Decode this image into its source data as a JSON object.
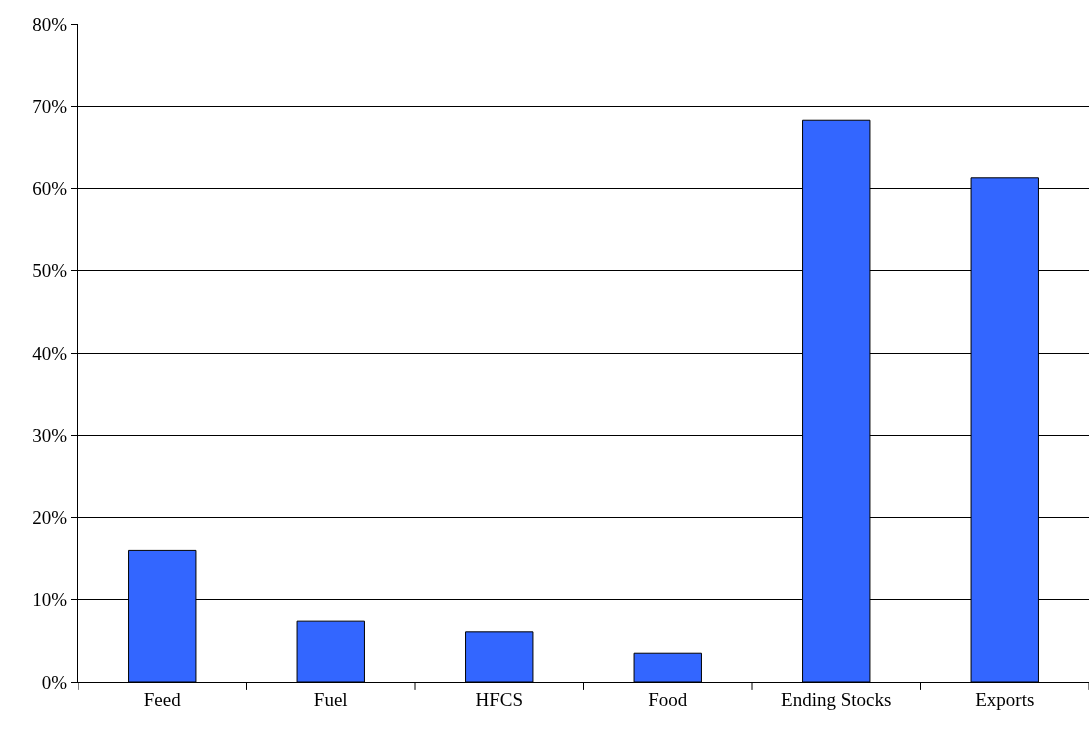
{
  "chart_data": {
    "type": "bar",
    "categories": [
      "Feed",
      "Fuel",
      "HFCS",
      "Food",
      "Ending Stocks",
      "Exports"
    ],
    "values": [
      16,
      7.4,
      6.1,
      3.5,
      68.3,
      61.3
    ],
    "color": "#3366ff",
    "ylim": [
      0,
      80
    ],
    "yticks": [
      {
        "value": 0,
        "label": "0%"
      },
      {
        "value": 10,
        "label": "10%"
      },
      {
        "value": 20,
        "label": "20%"
      },
      {
        "value": 30,
        "label": "30%"
      },
      {
        "value": 40,
        "label": "40%"
      },
      {
        "value": 50,
        "label": "50%"
      },
      {
        "value": 60,
        "label": "60%"
      },
      {
        "value": 70,
        "label": "70%"
      },
      {
        "value": 80,
        "label": "80%"
      }
    ],
    "grid": "y"
  }
}
